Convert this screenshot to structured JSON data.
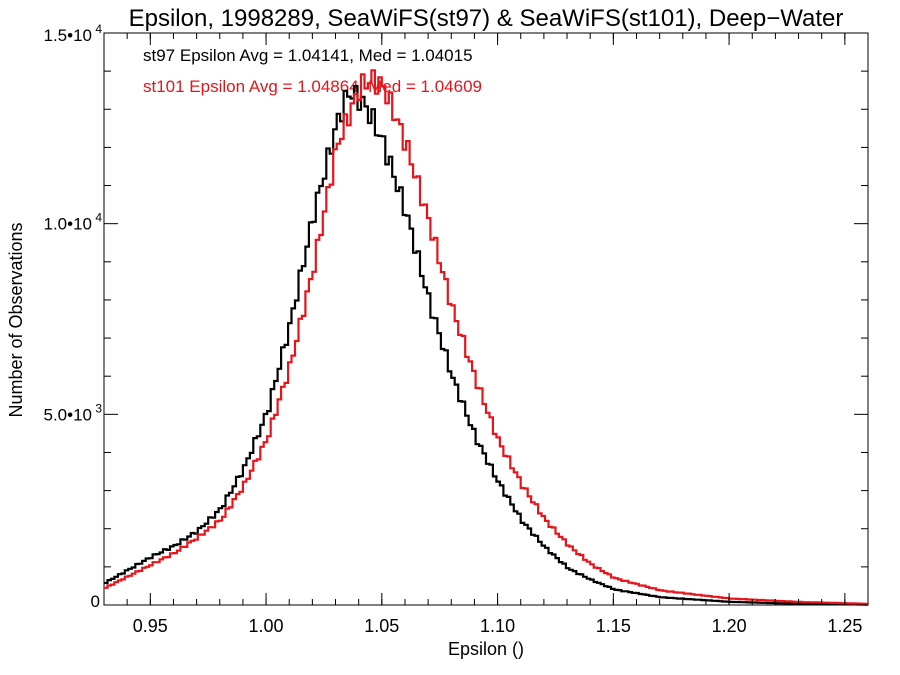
{
  "chart_data": {
    "type": "line",
    "title": "Epsilon, 1998289, SeaWiFS(st97) & SeaWiFS(st101), Deep−Water",
    "xlabel": "Epsilon ()",
    "ylabel": "Number of Observations",
    "xlim": [
      0.93,
      1.26
    ],
    "ylim": [
      0,
      15000
    ],
    "x_ticks": [
      0.95,
      1.0,
      1.05,
      1.1,
      1.15,
      1.2,
      1.25
    ],
    "x_tick_labels": [
      "0.95",
      "1.00",
      "1.05",
      "1.10",
      "1.15",
      "1.20",
      "1.25"
    ],
    "y_ticks": [
      0,
      5000,
      10000,
      15000
    ],
    "y_tick_labels": [
      {
        "mantissa": "0",
        "exp": ""
      },
      {
        "mantissa": "5.0•10",
        "exp": "3"
      },
      {
        "mantissa": "1.0•10",
        "exp": "4"
      },
      {
        "mantissa": "1.5•10",
        "exp": "4"
      }
    ],
    "grid": false,
    "series": [
      {
        "name": "st97",
        "color": "#000000",
        "annotation": "st97 Epsilon Avg = 1.04141, Med = 1.04015",
        "points": [
          [
            0.93,
            600
          ],
          [
            0.94,
            950
          ],
          [
            0.95,
            1300
          ],
          [
            0.96,
            1600
          ],
          [
            0.97,
            2000
          ],
          [
            0.98,
            2600
          ],
          [
            0.99,
            3700
          ],
          [
            1.0,
            5200
          ],
          [
            1.01,
            7600
          ],
          [
            1.02,
            10500
          ],
          [
            1.03,
            12900
          ],
          [
            1.035,
            13700
          ],
          [
            1.04,
            13500
          ],
          [
            1.045,
            13000
          ],
          [
            1.05,
            12300
          ],
          [
            1.06,
            10400
          ],
          [
            1.07,
            8000
          ],
          [
            1.08,
            6000
          ],
          [
            1.09,
            4400
          ],
          [
            1.1,
            3200
          ],
          [
            1.11,
            2200
          ],
          [
            1.12,
            1500
          ],
          [
            1.13,
            950
          ],
          [
            1.14,
            650
          ],
          [
            1.15,
            400
          ],
          [
            1.17,
            200
          ],
          [
            1.2,
            80
          ],
          [
            1.23,
            30
          ],
          [
            1.26,
            10
          ]
        ]
      },
      {
        "name": "st101",
        "color": "#e8141b",
        "annotation": "st101 Epsilon Avg = 1.04864, Med = 1.04609",
        "points": [
          [
            0.93,
            450
          ],
          [
            0.94,
            750
          ],
          [
            0.95,
            1050
          ],
          [
            0.96,
            1350
          ],
          [
            0.97,
            1750
          ],
          [
            0.98,
            2200
          ],
          [
            0.99,
            3100
          ],
          [
            1.0,
            4300
          ],
          [
            1.01,
            6200
          ],
          [
            1.02,
            8700
          ],
          [
            1.03,
            11800
          ],
          [
            1.04,
            13300
          ],
          [
            1.045,
            13500
          ],
          [
            1.05,
            13300
          ],
          [
            1.055,
            12600
          ],
          [
            1.06,
            11800
          ],
          [
            1.07,
            9800
          ],
          [
            1.08,
            7600
          ],
          [
            1.09,
            5800
          ],
          [
            1.1,
            4200
          ],
          [
            1.11,
            3100
          ],
          [
            1.12,
            2200
          ],
          [
            1.13,
            1550
          ],
          [
            1.14,
            1050
          ],
          [
            1.15,
            700
          ],
          [
            1.17,
            380
          ],
          [
            1.2,
            170
          ],
          [
            1.23,
            80
          ],
          [
            1.26,
            30
          ]
        ]
      }
    ]
  }
}
